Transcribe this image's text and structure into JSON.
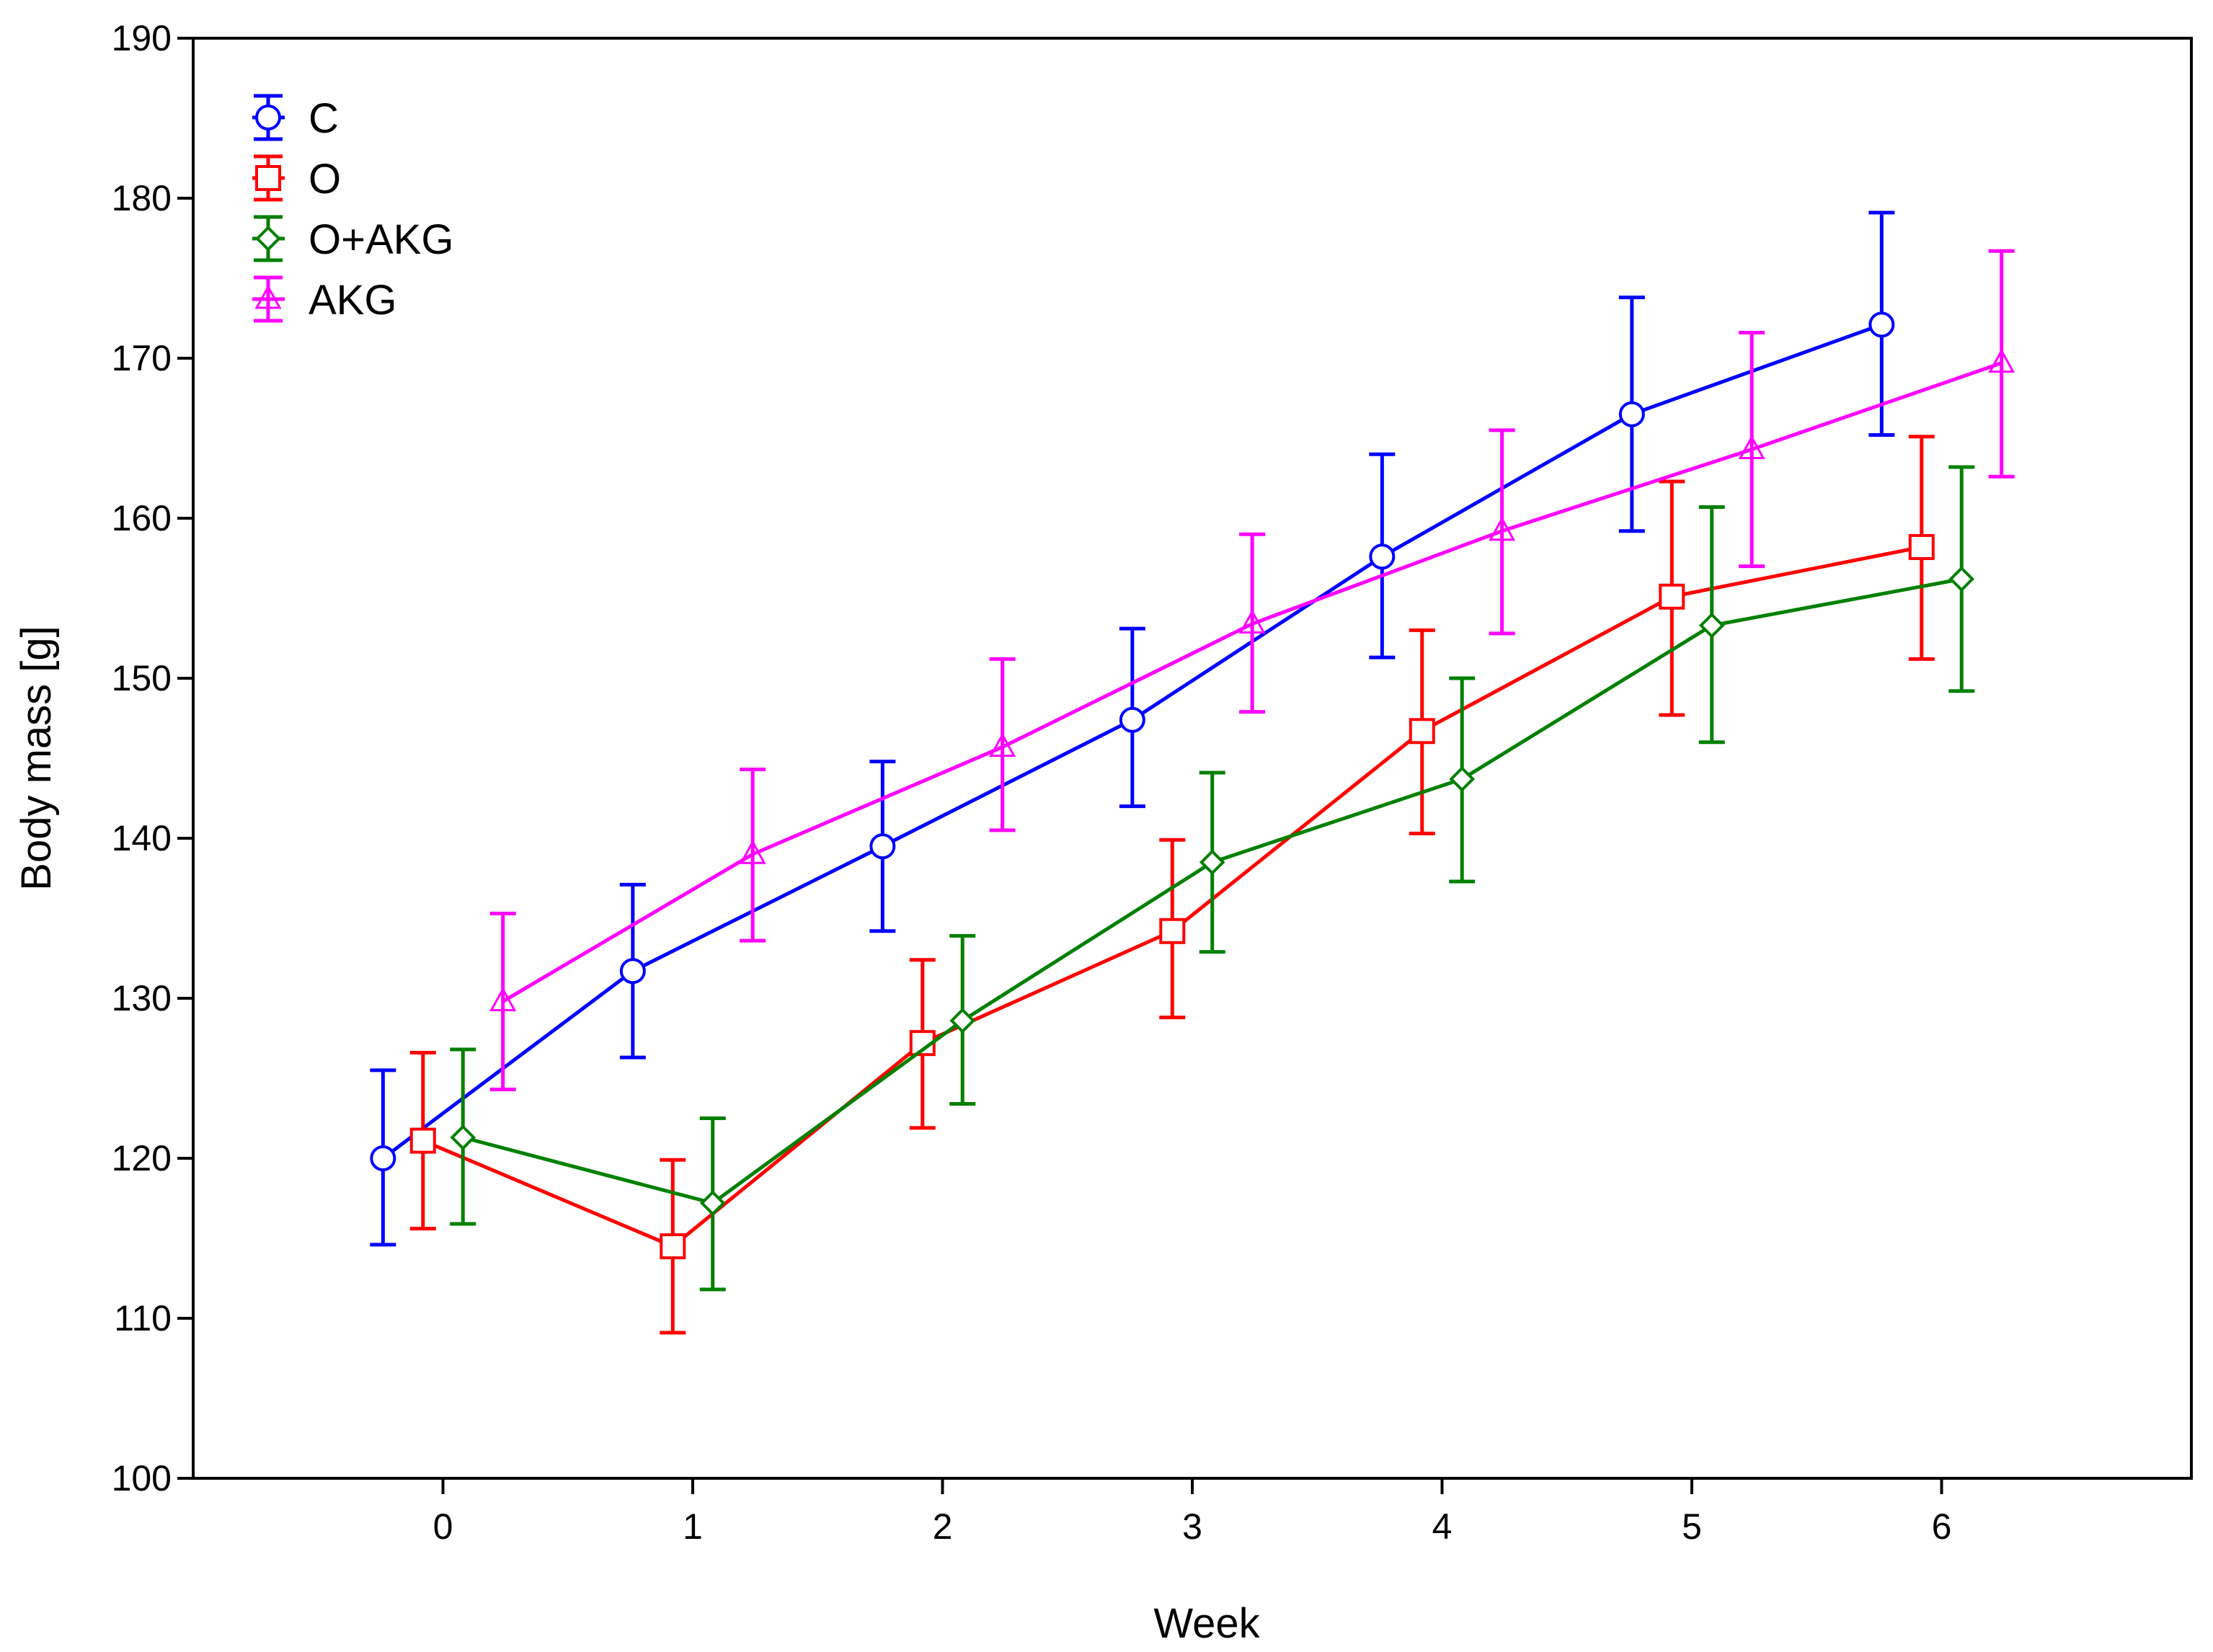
{
  "chart_data": {
    "type": "line",
    "xlabel": "Week",
    "ylabel": "Body mass [g]",
    "x": [
      0,
      1,
      2,
      3,
      4,
      5,
      6
    ],
    "xticks": [
      "0",
      "1",
      "2",
      "3",
      "4",
      "5",
      "6"
    ],
    "xlim": [
      -1,
      7
    ],
    "ylim": [
      100,
      190
    ],
    "yticks": [
      "100",
      "110",
      "120",
      "130",
      "140",
      "150",
      "160",
      "170",
      "180",
      "190"
    ],
    "legend_position": "top-left",
    "error_bars": true,
    "series": [
      {
        "name": "C",
        "color": "#0000ff",
        "marker": "circle",
        "offset": -0.24,
        "values": [
          120.0,
          131.7,
          139.5,
          147.4,
          157.6,
          166.5,
          172.1
        ],
        "lower": [
          114.6,
          126.3,
          134.2,
          142.0,
          151.3,
          159.2,
          165.2
        ],
        "upper": [
          125.5,
          137.1,
          144.8,
          153.1,
          164.0,
          173.8,
          179.1
        ]
      },
      {
        "name": "O",
        "color": "#ff0000",
        "marker": "square",
        "offset": -0.08,
        "values": [
          121.1,
          114.5,
          127.2,
          134.2,
          146.7,
          155.1,
          158.2
        ],
        "lower": [
          115.6,
          109.1,
          121.9,
          128.8,
          140.3,
          147.7,
          151.2
        ],
        "upper": [
          126.6,
          119.9,
          132.4,
          139.9,
          153.0,
          162.3,
          165.1
        ]
      },
      {
        "name": "O+AKG",
        "color": "#008000",
        "marker": "diamond",
        "offset": 0.08,
        "values": [
          121.3,
          117.2,
          128.6,
          138.5,
          143.7,
          153.3,
          156.2
        ],
        "lower": [
          115.9,
          111.8,
          123.4,
          132.9,
          137.3,
          146.0,
          149.2
        ],
        "upper": [
          126.8,
          122.5,
          133.9,
          144.1,
          150.0,
          160.7,
          163.2
        ]
      },
      {
        "name": "AKG",
        "color": "#ff00ff",
        "marker": "triangle",
        "offset": 0.24,
        "values": [
          129.8,
          139.0,
          145.7,
          153.4,
          159.2,
          164.3,
          169.7
        ],
        "lower": [
          124.3,
          133.6,
          140.5,
          147.9,
          152.8,
          157.0,
          162.6
        ],
        "upper": [
          135.3,
          144.3,
          151.2,
          159.0,
          165.5,
          171.6,
          176.7
        ]
      }
    ]
  }
}
